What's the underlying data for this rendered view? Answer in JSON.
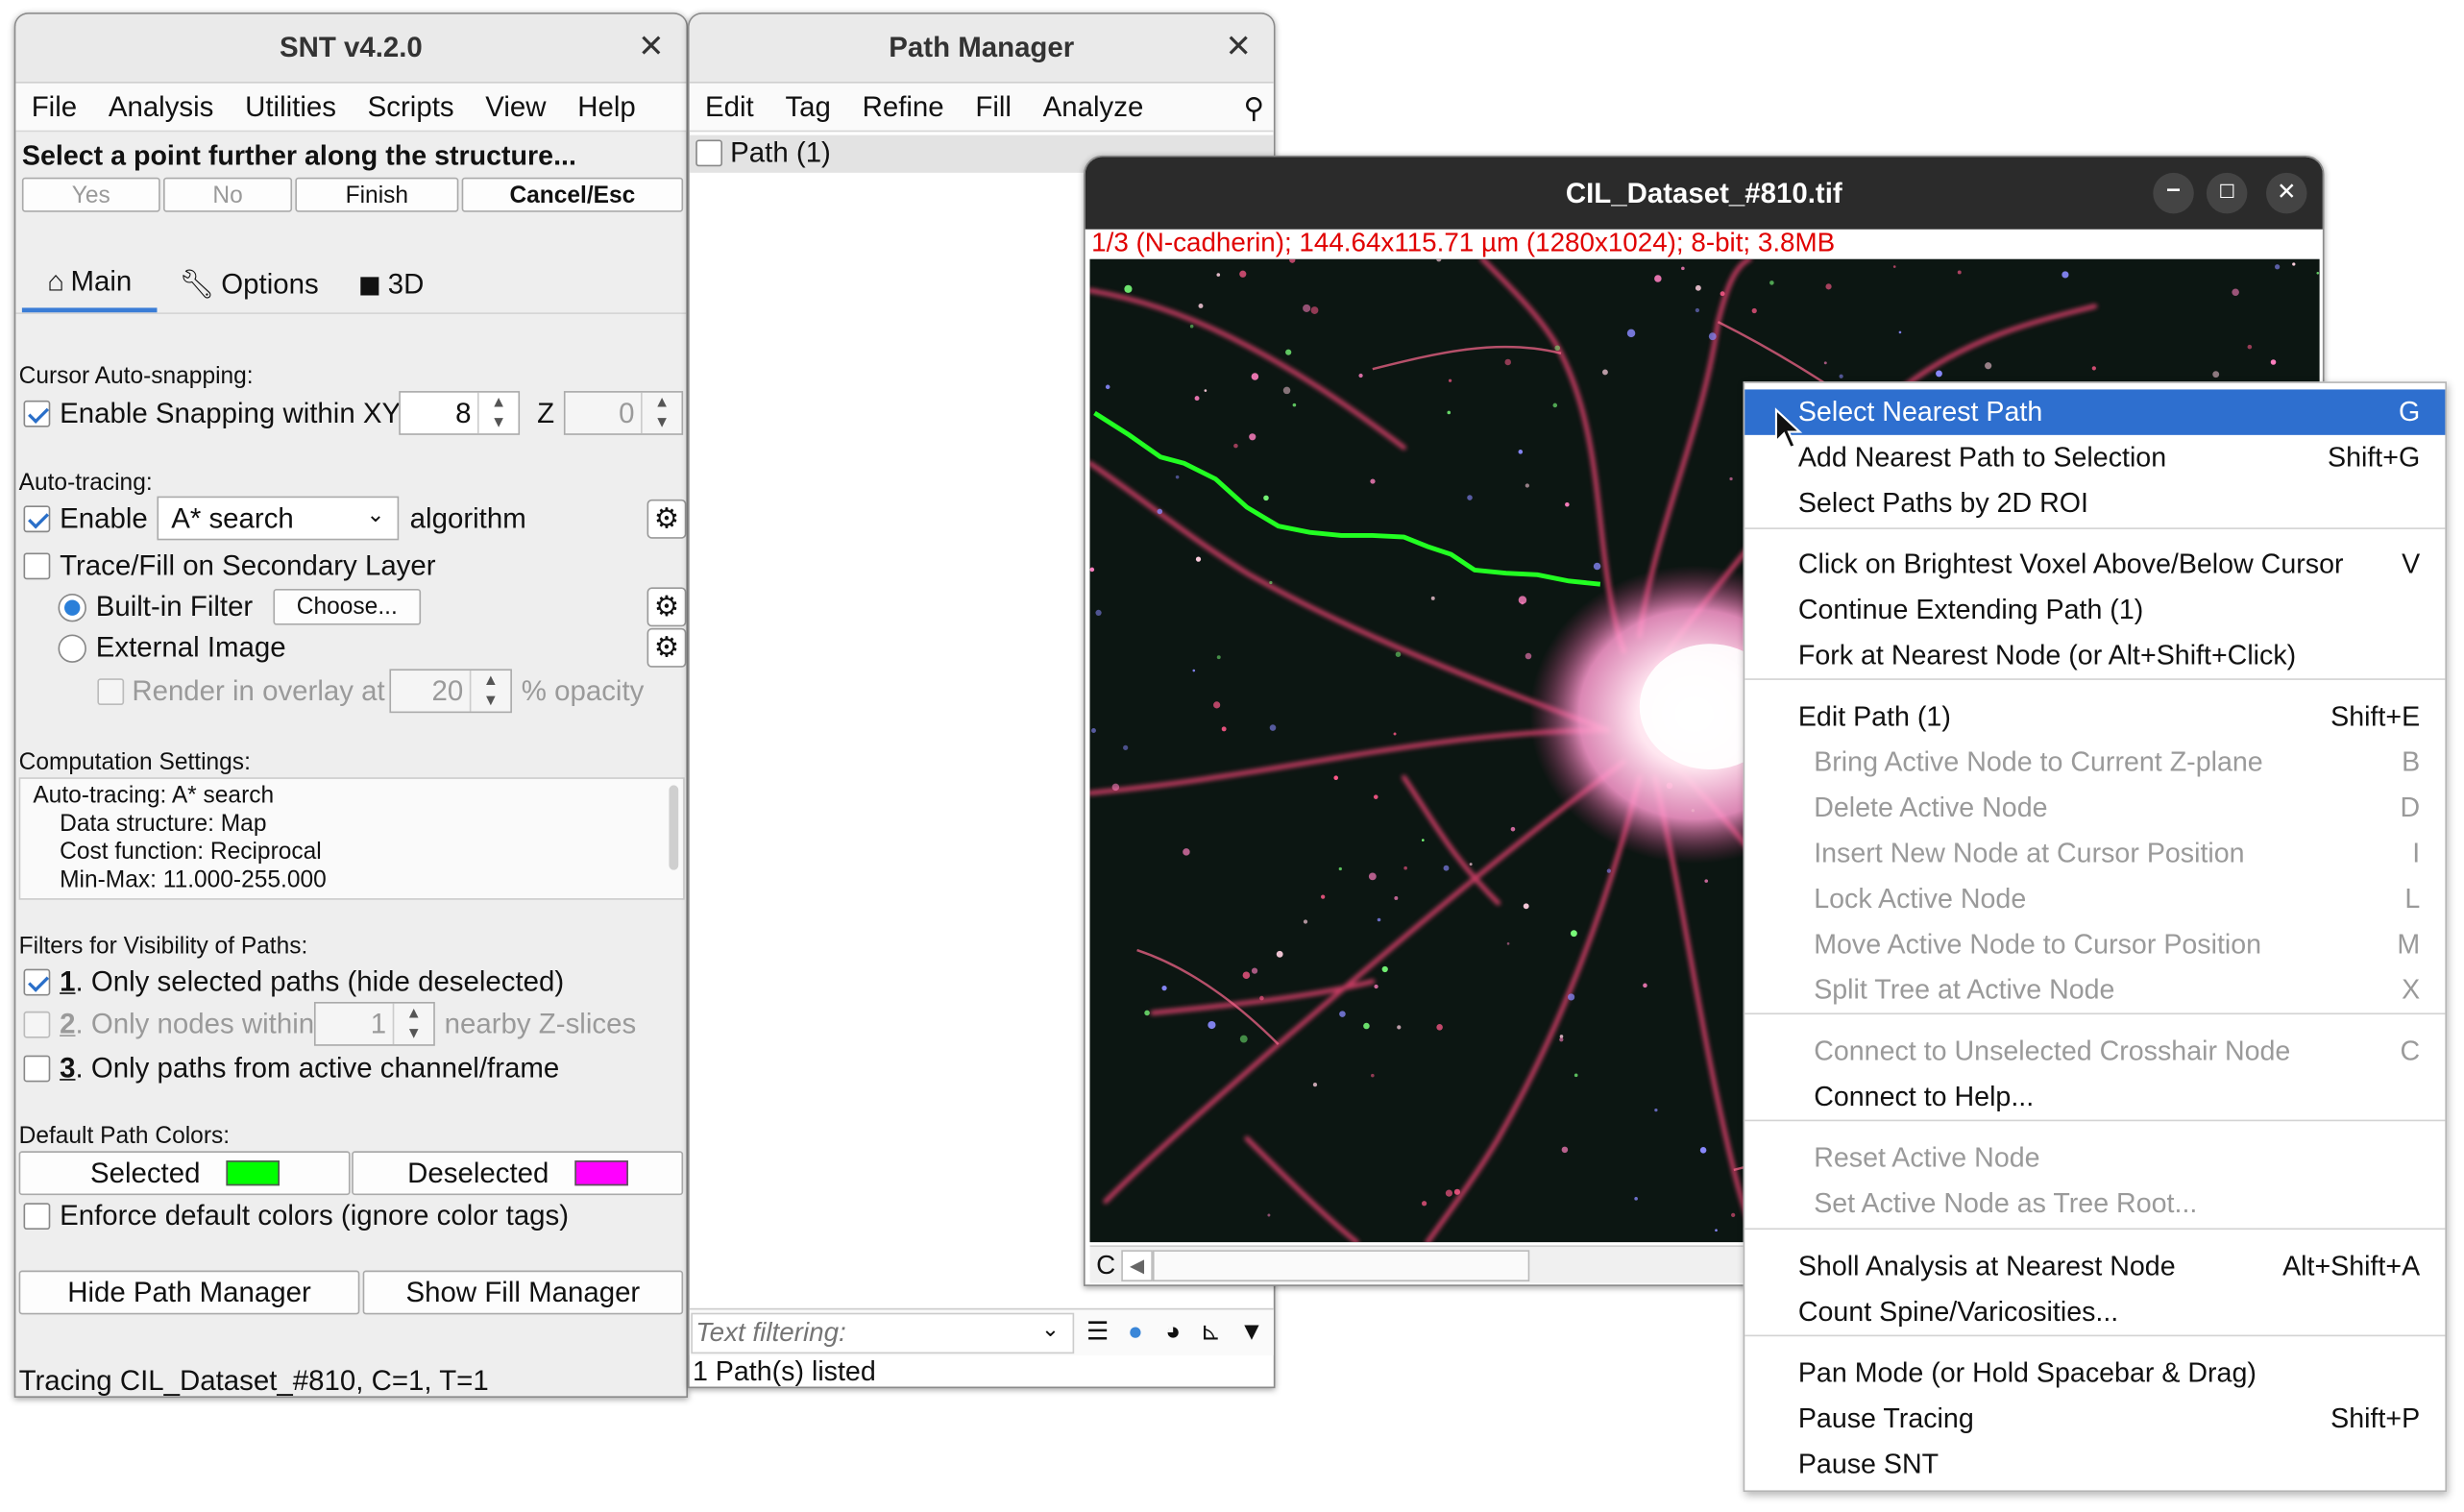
{
  "snt": {
    "title": "SNT v4.2.0",
    "menu": [
      "File",
      "Analysis",
      "Utilities",
      "Scripts",
      "View",
      "Help"
    ],
    "prompt": "Select a point further along the structure...",
    "buttons": {
      "yes": "Yes",
      "no": "No",
      "finish": "Finish",
      "cancel": "Cancel/Esc"
    },
    "tabs": {
      "main": "Main",
      "options": "Options",
      "three_d": "3D"
    },
    "snapping": {
      "section": "Cursor Auto-snapping:",
      "label": "Enable Snapping within XY",
      "xy": "8",
      "z_label": "Z",
      "z": "0"
    },
    "autotracing": {
      "section": "Auto-tracing:",
      "enable": "Enable",
      "algorithm_value": "A* search",
      "algorithm_suffix": "algorithm",
      "secondary": "Trace/Fill on Secondary Layer",
      "builtin": "Built-in Filter",
      "choose": "Choose...",
      "external": "External Image",
      "overlay": "Render in overlay at",
      "overlay_value": "20",
      "opacity": "% opacity"
    },
    "computation": {
      "section": "Computation Settings:",
      "lines": [
        "Auto-tracing: A* search",
        "Data structure: Map",
        "Cost function: Reciprocal",
        "Min-Max: 11.000-255.000"
      ]
    },
    "filters": {
      "section": "Filters for Visibility of Paths:",
      "f1_num": "1",
      "f1": ". Only selected paths (hide deselected)",
      "f2_num": "2",
      "f2": ". Only nodes within",
      "f2_value": "1",
      "f2_suffix": "nearby Z-slices",
      "f3_num": "3",
      "f3": ". Only paths from active channel/frame"
    },
    "colors": {
      "section": "Default Path Colors:",
      "selected": "Selected",
      "deselected": "Deselected",
      "selected_color": "#00ff00",
      "deselected_color": "#ff00ff",
      "enforce": "Enforce default colors (ignore color tags)"
    },
    "bottom_buttons": {
      "hide_pm": "Hide Path Manager",
      "show_fm": "Show Fill Manager"
    },
    "status": "Tracing CIL_Dataset_#810, C=1, T=1"
  },
  "pm": {
    "title": "Path Manager",
    "menu": [
      "Edit",
      "Tag",
      "Refine",
      "Fill",
      "Analyze"
    ],
    "path_item": "Path (1)",
    "filter_placeholder": "Text filtering:",
    "status": "1 Path(s) listed"
  },
  "img": {
    "title": "CIL_Dataset_#810.tif",
    "info": "1/3 (N-cadherin); 144.64x115.71 µm (1280x1024); 8-bit; 3.8MB",
    "channel": "C",
    "info_color": "#e00000"
  },
  "context_menu": {
    "items": [
      {
        "label": "Select Nearest Path",
        "key": "G"
      },
      {
        "label": "Add Nearest Path to Selection",
        "key": "Shift+G"
      },
      {
        "label": "Select Paths by 2D ROI",
        "key": ""
      },
      {
        "label": "Click on Brightest Voxel Above/Below Cursor",
        "key": "V"
      },
      {
        "label": "Continue Extending Path (1)",
        "key": ""
      },
      {
        "label": "Fork at Nearest Node  (or Alt+Shift+Click)",
        "key": ""
      },
      {
        "label": "Edit Path (1)",
        "key": "Shift+E"
      },
      {
        "label": "Bring Active Node to Current Z-plane",
        "key": "B"
      },
      {
        "label": "Delete Active Node",
        "key": "D"
      },
      {
        "label": "Insert New Node at Cursor Position",
        "key": "I"
      },
      {
        "label": "Lock Active Node",
        "key": "L"
      },
      {
        "label": "Move Active Node to Cursor Position",
        "key": "M"
      },
      {
        "label": "Split Tree at Active Node",
        "key": "X"
      },
      {
        "label": "Connect to Unselected Crosshair Node",
        "key": "C"
      },
      {
        "label": "Connect to Help...",
        "key": ""
      },
      {
        "label": "Reset Active Node",
        "key": ""
      },
      {
        "label": "Set Active Node as Tree Root...",
        "key": ""
      },
      {
        "label": "Sholl Analysis at Nearest Node",
        "key": "Alt+Shift+A"
      },
      {
        "label": "Count Spine/Varicosities...",
        "key": ""
      },
      {
        "label": "Pan Mode  (or Hold Spacebar & Drag)",
        "key": ""
      },
      {
        "label": "Pause Tracing",
        "key": "Shift+P"
      },
      {
        "label": "Pause SNT",
        "key": ""
      }
    ]
  }
}
